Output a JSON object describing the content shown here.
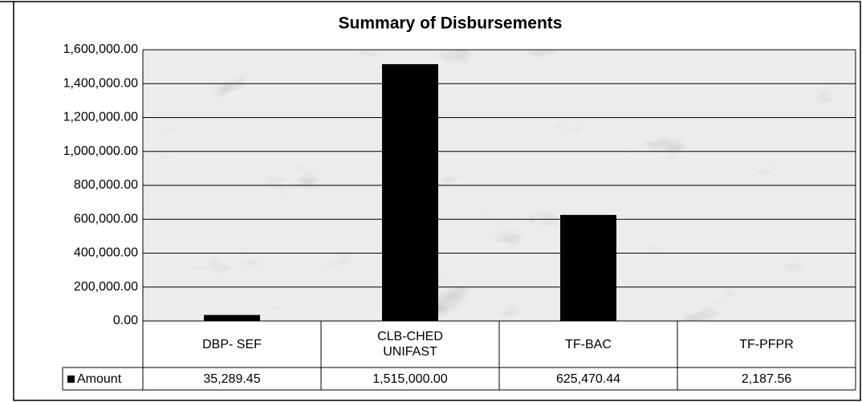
{
  "chart_data": {
    "type": "bar",
    "title": "Summary of Disbursements",
    "categories": [
      "DBP- SEF",
      "CLB-CHED UNIFAST",
      "TF-BAC",
      "TF-PFPR"
    ],
    "series": [
      {
        "name": "Amount",
        "color": "#000000",
        "values": [
          35289.45,
          1515000,
          625470.44,
          2187.56
        ],
        "value_labels": [
          "35,289.45",
          "1,515,000.00",
          "625,470.44",
          "2,187.56"
        ]
      }
    ],
    "ylim": [
      0,
      1600000
    ],
    "yticks": [
      {
        "value": 0,
        "label": "0.00"
      },
      {
        "value": 200000,
        "label": "200,000.00"
      },
      {
        "value": 400000,
        "label": "400,000.00"
      },
      {
        "value": 600000,
        "label": "600,000.00"
      },
      {
        "value": 800000,
        "label": "800,000.00"
      },
      {
        "value": 1000000,
        "label": "1,000,000.00"
      },
      {
        "value": 1200000,
        "label": "1,200,000.00"
      },
      {
        "value": 1400000,
        "label": "1,400,000.00"
      },
      {
        "value": 1600000,
        "label": "1,600,000.00"
      }
    ],
    "grid": true,
    "data_table": true
  }
}
